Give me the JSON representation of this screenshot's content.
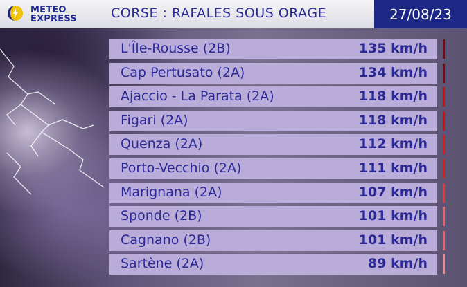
{
  "header": {
    "logo_line1": "METEO",
    "logo_line2": "EXPRESS",
    "title": "CORSE : RAFALES SOUS ORAGE",
    "date": "27/08/23"
  },
  "colors": {
    "brand_blue": "#1d2886",
    "title_blue": "#2a2b95",
    "row_bg": "#b9acd9",
    "sun_yellow": "#f2c200"
  },
  "rows": [
    {
      "name": "L'Île-Rousse (2B)",
      "value": "135 km/h",
      "marker_color": "#7a0a0a"
    },
    {
      "name": "Cap Pertusato (2A)",
      "value": "134 km/h",
      "marker_color": "#7a0a0a"
    },
    {
      "name": "Ajaccio - La Parata (2A)",
      "value": "118 km/h",
      "marker_color": "#d10f0f"
    },
    {
      "name": "Figari (2A)",
      "value": "118 km/h",
      "marker_color": "#d10f0f"
    },
    {
      "name": "Quenza (2A)",
      "value": "112 km/h",
      "marker_color": "#e01818"
    },
    {
      "name": "Porto-Vecchio (2A)",
      "value": "111 km/h",
      "marker_color": "#e01818"
    },
    {
      "name": "Marignana (2A)",
      "value": "107 km/h",
      "marker_color": "#e83a3a"
    },
    {
      "name": "Sponde (2B)",
      "value": "101 km/h",
      "marker_color": "#ee6565"
    },
    {
      "name": "Cagnano (2B)",
      "value": "101 km/h",
      "marker_color": "#ee6565"
    },
    {
      "name": "Sartène (2A)",
      "value": "89 km/h",
      "marker_color": "#f08a8a"
    }
  ]
}
